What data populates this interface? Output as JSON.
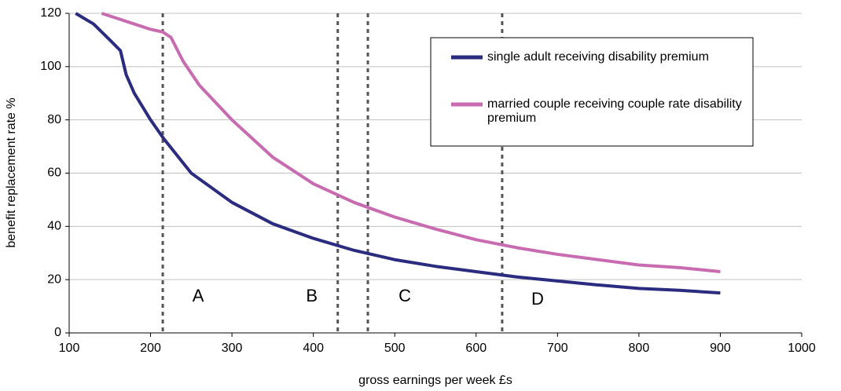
{
  "chart_data": {
    "type": "line",
    "xlabel": "gross earnings per week £s",
    "ylabel": "benefit replacement rate %",
    "xlim": [
      100,
      1000
    ],
    "xticks": [
      100,
      200,
      300,
      400,
      500,
      600,
      700,
      800,
      900,
      1000
    ],
    "ylim": [
      0,
      120
    ],
    "yticks": [
      0,
      20,
      40,
      60,
      80,
      100,
      120
    ],
    "grid": true,
    "legend": "upper right",
    "series": [
      {
        "name": "single adult receiving disability premium",
        "color": "#2b2b80",
        "x": [
          108,
          130,
          140,
          150,
          163,
          170,
          180,
          200,
          216,
          250,
          300,
          350,
          400,
          450,
          500,
          550,
          600,
          650,
          700,
          750,
          800,
          850,
          900
        ],
        "values": [
          120,
          116,
          113,
          110,
          106,
          97,
          90,
          80,
          73,
          60,
          49,
          41,
          35.5,
          31,
          27.5,
          25,
          23,
          21,
          19.5,
          18,
          16.7,
          16,
          15
        ]
      },
      {
        "name": "married couple receiving couple rate disability premium",
        "color": "#c86bb0",
        "x": [
          140,
          160,
          180,
          200,
          215,
          225,
          240,
          260,
          300,
          350,
          400,
          450,
          500,
          550,
          600,
          650,
          700,
          750,
          800,
          850,
          900
        ],
        "values": [
          120,
          118,
          116,
          114,
          113,
          111,
          102,
          93,
          80,
          66,
          56,
          49,
          43.5,
          39,
          35,
          32,
          29.5,
          27.5,
          25.5,
          24.5,
          23
        ]
      }
    ],
    "reference_lines": [
      {
        "x": 215,
        "label": "A"
      },
      {
        "x": 430,
        "label": "B"
      },
      {
        "x": 467,
        "label": "C"
      },
      {
        "x": 632,
        "label": "D"
      }
    ]
  }
}
